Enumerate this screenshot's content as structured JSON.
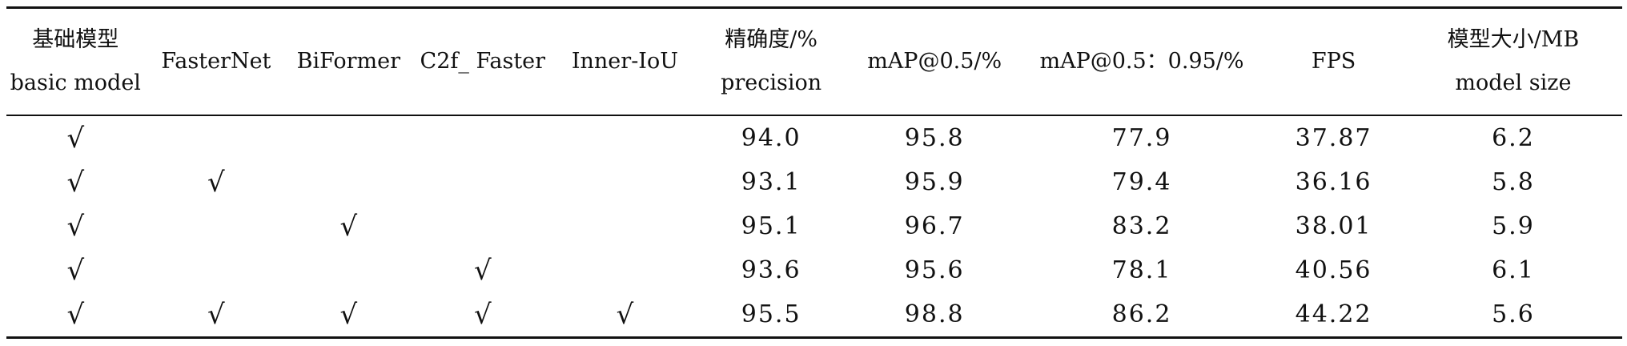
{
  "table": {
    "headers": [
      {
        "zh": "基础模型",
        "en": "basic model"
      },
      {
        "zh": "",
        "en": "FasterNet"
      },
      {
        "zh": "",
        "en": "BiFormer"
      },
      {
        "zh": "",
        "en": "C2f_ Faster"
      },
      {
        "zh": "",
        "en": "Inner-IoU"
      },
      {
        "zh": "精确度/%",
        "en": "precision"
      },
      {
        "zh": "",
        "en": "mAP@0.5/%"
      },
      {
        "zh": "",
        "en": "mAP@0.5：0.95/%"
      },
      {
        "zh": "",
        "en": "FPS"
      },
      {
        "zh": "模型大小/MB",
        "en": "model size"
      }
    ],
    "check_symbol": "√",
    "rows": [
      {
        "checks": [
          "√",
          "",
          "",
          "",
          ""
        ],
        "values": [
          "94.0",
          "95.8",
          "77.9",
          "37.87",
          "6.2"
        ]
      },
      {
        "checks": [
          "√",
          "√",
          "",
          "",
          ""
        ],
        "values": [
          "93.1",
          "95.9",
          "79.4",
          "36.16",
          "5.8"
        ]
      },
      {
        "checks": [
          "√",
          "",
          "√",
          "",
          ""
        ],
        "values": [
          "95.1",
          "96.7",
          "83.2",
          "38.01",
          "5.9"
        ]
      },
      {
        "checks": [
          "√",
          "",
          "",
          "√",
          ""
        ],
        "values": [
          "93.6",
          "95.6",
          "78.1",
          "40.56",
          "6.1"
        ]
      },
      {
        "checks": [
          "√",
          "√",
          "√",
          "√",
          "√"
        ],
        "values": [
          "95.5",
          "98.8",
          "86.2",
          "44.22",
          "5.6"
        ]
      }
    ]
  }
}
